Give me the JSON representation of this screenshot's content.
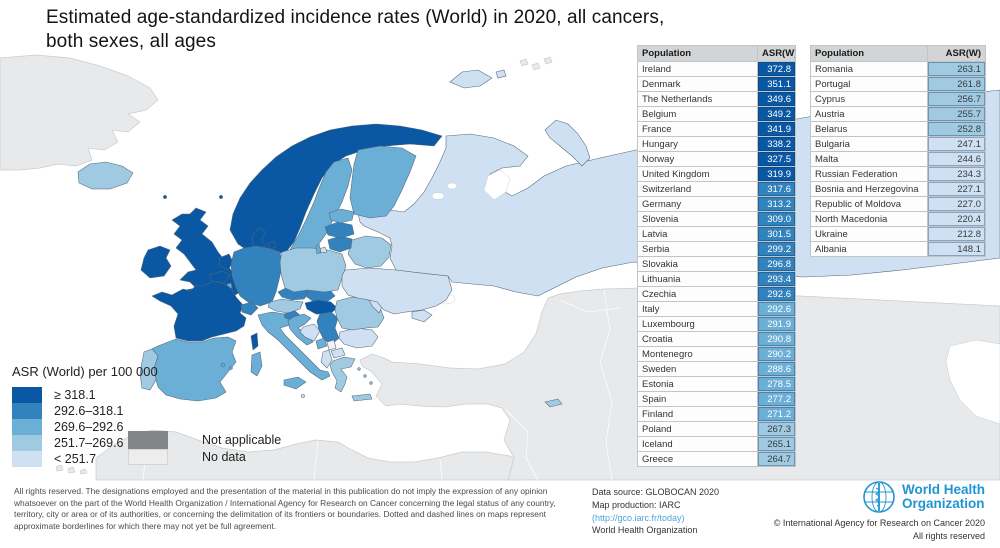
{
  "title": {
    "line1": "Estimated age-standardized incidence rates (World) in 2020, all cancers,",
    "line2": "both sexes, all ages"
  },
  "legend": {
    "title": "ASR (World) per 100 000",
    "classes": [
      {
        "cls": "c1",
        "label": "≥ 318.1",
        "color": "#0a58a3"
      },
      {
        "cls": "c2",
        "label": "292.6–318.1",
        "color": "#3182bd"
      },
      {
        "cls": "c3",
        "label": "269.6–292.6",
        "color": "#6baed6"
      },
      {
        "cls": "c4",
        "label": "251.7–269.6",
        "color": "#9fcae1"
      },
      {
        "cls": "c5",
        "label": "< 251.7",
        "color": "#cfe0f2"
      }
    ],
    "not_applicable": {
      "label": "Not applicable",
      "color": "#828689"
    },
    "no_data": {
      "label": "No data",
      "color": "#ededed"
    }
  },
  "map_colors": {
    "c1": "#0a58a3",
    "c2": "#3182bd",
    "c3": "#6baed6",
    "c4": "#9fcae1",
    "c5": "#cfe0f2",
    "na_land": "#e7e9ea",
    "nodata_land": "#f2f2f2",
    "sea": "#ffffff"
  },
  "tables": [
    {
      "headers": [
        "Population",
        "ASR(W)"
      ],
      "rows": [
        {
          "name": "Ireland",
          "value": "372.8",
          "cls": "c1"
        },
        {
          "name": "Denmark",
          "value": "351.1",
          "cls": "c1"
        },
        {
          "name": "The Netherlands",
          "value": "349.6",
          "cls": "c1"
        },
        {
          "name": "Belgium",
          "value": "349.2",
          "cls": "c1"
        },
        {
          "name": "France",
          "value": "341.9",
          "cls": "c1"
        },
        {
          "name": "Hungary",
          "value": "338.2",
          "cls": "c1"
        },
        {
          "name": "Norway",
          "value": "327.5",
          "cls": "c1"
        },
        {
          "name": "United Kingdom",
          "value": "319.9",
          "cls": "c1"
        },
        {
          "name": "Switzerland",
          "value": "317.6",
          "cls": "c2"
        },
        {
          "name": "Germany",
          "value": "313.2",
          "cls": "c2"
        },
        {
          "name": "Slovenia",
          "value": "309.0",
          "cls": "c2"
        },
        {
          "name": "Latvia",
          "value": "301.5",
          "cls": "c2"
        },
        {
          "name": "Serbia",
          "value": "299.2",
          "cls": "c2"
        },
        {
          "name": "Slovakia",
          "value": "296.8",
          "cls": "c2"
        },
        {
          "name": "Lithuania",
          "value": "293.4",
          "cls": "c2"
        },
        {
          "name": "Czechia",
          "value": "292.6",
          "cls": "c2"
        },
        {
          "name": "Italy",
          "value": "292.6",
          "cls": "c3"
        },
        {
          "name": "Luxembourg",
          "value": "291.9",
          "cls": "c3"
        },
        {
          "name": "Croatia",
          "value": "290.8",
          "cls": "c3"
        },
        {
          "name": "Montenegro",
          "value": "290.2",
          "cls": "c3"
        },
        {
          "name": "Sweden",
          "value": "288.6",
          "cls": "c3"
        },
        {
          "name": "Estonia",
          "value": "278.5",
          "cls": "c3"
        },
        {
          "name": "Spain",
          "value": "277.2",
          "cls": "c3"
        },
        {
          "name": "Finland",
          "value": "271.2",
          "cls": "c3"
        },
        {
          "name": "Poland",
          "value": "267.3",
          "cls": "c4"
        },
        {
          "name": "Iceland",
          "value": "265.1",
          "cls": "c4"
        },
        {
          "name": "Greece",
          "value": "264.7",
          "cls": "c4"
        }
      ]
    },
    {
      "headers": [
        "Population",
        "ASR(W)"
      ],
      "rows": [
        {
          "name": "Romania",
          "value": "263.1",
          "cls": "c4"
        },
        {
          "name": "Portugal",
          "value": "261.8",
          "cls": "c4"
        },
        {
          "name": "Cyprus",
          "value": "256.7",
          "cls": "c4"
        },
        {
          "name": "Austria",
          "value": "255.7",
          "cls": "c4"
        },
        {
          "name": "Belarus",
          "value": "252.8",
          "cls": "c4"
        },
        {
          "name": "Bulgaria",
          "value": "247.1",
          "cls": "c5"
        },
        {
          "name": "Malta",
          "value": "244.6",
          "cls": "c5"
        },
        {
          "name": "Russian Federation",
          "value": "234.3",
          "cls": "c5"
        },
        {
          "name": "Bosnia and Herzegovina",
          "value": "227.1",
          "cls": "c5"
        },
        {
          "name": "Republic of Moldova",
          "value": "227.0",
          "cls": "c5"
        },
        {
          "name": "North Macedonia",
          "value": "220.4",
          "cls": "c5"
        },
        {
          "name": "Ukraine",
          "value": "212.8",
          "cls": "c5"
        },
        {
          "name": "Albania",
          "value": "148.1",
          "cls": "c5"
        }
      ]
    }
  ],
  "footer": {
    "disclaimer": "All rights reserved. The designations employed and the presentation of the material in this publication do not imply the expression of any opinion whatsoever on the part of the World Health Organization / International Agency for Research on Cancer concerning the legal status of any country, territory, city or area or of its authorities, or concerning the delimitation of its frontiers or boundaries. Dotted and dashed lines on maps represent approximate borderlines for which there may not yet be full agreement.",
    "source_line1": "Data source: GLOBOCAN 2020",
    "source_line2": "Map production: IARC",
    "source_link": "(http://gco.iarc.fr/today)",
    "source_line4": "World Health Organization",
    "who_name_line1": "World Health",
    "who_name_line2": "Organization",
    "copyright": "© International Agency for Research on Cancer 2020",
    "rights": "All rights reserved",
    "who_blue": "#2095d3"
  }
}
